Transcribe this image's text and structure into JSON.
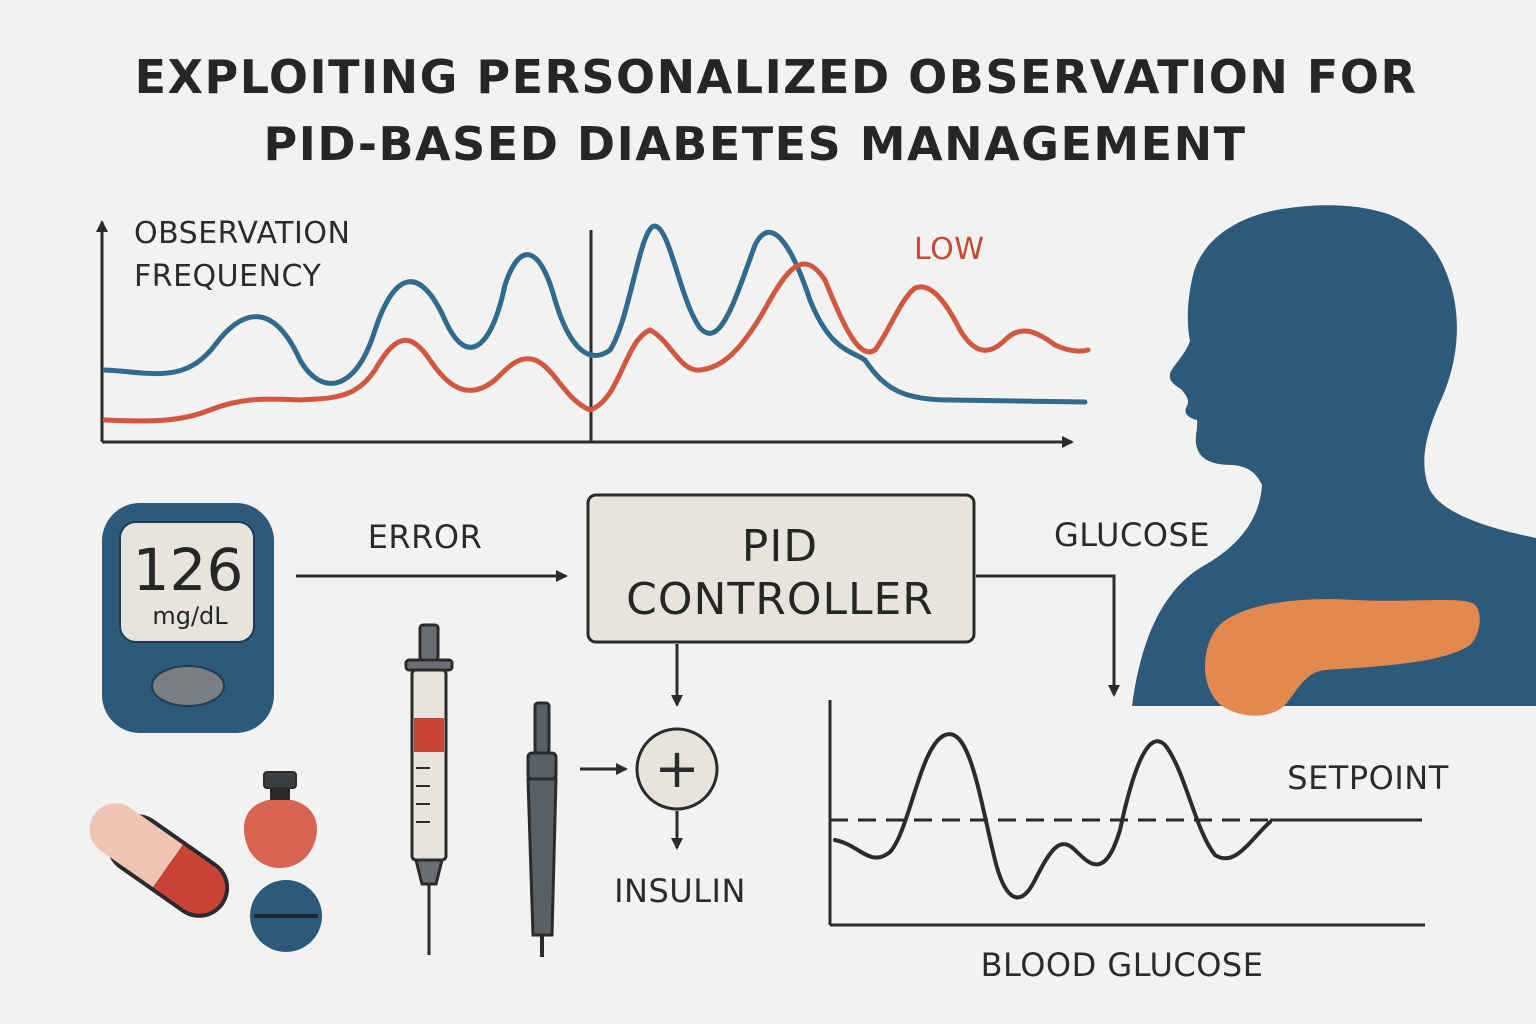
{
  "title": {
    "line1": "EXPLOITING PERSONALIZED OBSERVATION FOR",
    "line2": "PID-BASED DIABETES MANAGEMENT"
  },
  "observation_chart": {
    "ylabel_line1": "OBSERVATION",
    "ylabel_line2": "FREQUENCY",
    "low_label": "LOW"
  },
  "meter": {
    "reading": "126",
    "unit": "mg/dL"
  },
  "flow": {
    "error_label": "ERROR",
    "glucose_label": "GLUCOSE",
    "insulin_label": "INSULIN",
    "pid_line1": "PID",
    "pid_line2": "CONTROLLER",
    "sum_symbol": "+"
  },
  "glucose_chart": {
    "setpoint_label": "SETPOINT",
    "xlabel": "BLOOD GLUCOSE"
  },
  "colors": {
    "blue_line": "#2f6b8e",
    "red_line": "#d2573f",
    "silhouette": "#2d5a7b",
    "pancreas": "#e3884e",
    "low_text": "#c44a3a"
  },
  "icons": [
    "glucose-meter-icon",
    "person-silhouette-icon",
    "pancreas-icon",
    "syringe-icon",
    "insulin-pen-icon",
    "capsule-icon",
    "vial-icon",
    "tablet-icon",
    "summing-junction-icon"
  ]
}
